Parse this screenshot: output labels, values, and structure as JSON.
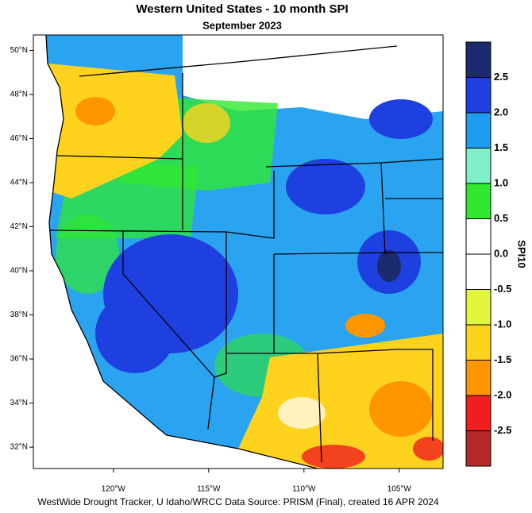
{
  "title": "Western United States - 10 month SPI",
  "subtitle": "September 2023",
  "map": {
    "lonlim": [
      -124.2,
      -102.7
    ],
    "latlim": [
      31.03,
      50.7
    ],
    "lat_ticks": [
      {
        "value": 50,
        "label": "50°N"
      },
      {
        "value": 48,
        "label": "48°N"
      },
      {
        "value": 46,
        "label": "46°N"
      },
      {
        "value": 44,
        "label": "44°N"
      },
      {
        "value": 42,
        "label": "42°N"
      },
      {
        "value": 40,
        "label": "40°N"
      },
      {
        "value": 38,
        "label": "38°N"
      },
      {
        "value": 36,
        "label": "36°N"
      },
      {
        "value": 34,
        "label": "34°N"
      },
      {
        "value": 32,
        "label": "32°N"
      }
    ],
    "lon_ticks": [
      {
        "value": -120,
        "label": "120°W"
      },
      {
        "value": -115,
        "label": "115°W"
      },
      {
        "value": -110,
        "label": "110°W"
      },
      {
        "value": -105,
        "label": "105°W"
      }
    ]
  },
  "colorbar": {
    "title": "SPI10",
    "lim": [
      -3,
      3
    ],
    "colors": [
      "#1c2a6e",
      "#1e40e0",
      "#1e9cf0",
      "#7ff0c8",
      "#30e830",
      "#ffffff",
      "#ffffff",
      "#e1f53c",
      "#ffd21e",
      "#ff9600",
      "#f01e1e",
      "#b42828"
    ],
    "ticks": [
      2.5,
      {
        "value": 2,
        "label": "2.0"
      },
      1.5,
      {
        "value": 1,
        "label": "1.0"
      },
      0.5,
      {
        "value": 0,
        "label": "0.0"
      },
      -0.5,
      {
        "value": -1,
        "label": "-1.0"
      },
      -1.5,
      {
        "value": -2,
        "label": "-2.0"
      },
      -2.5
    ]
  },
  "footer": "WestWide Drought Tracker, U Idaho/WRCC Data Source: PRISM (Final), created 16 APR 2024"
}
